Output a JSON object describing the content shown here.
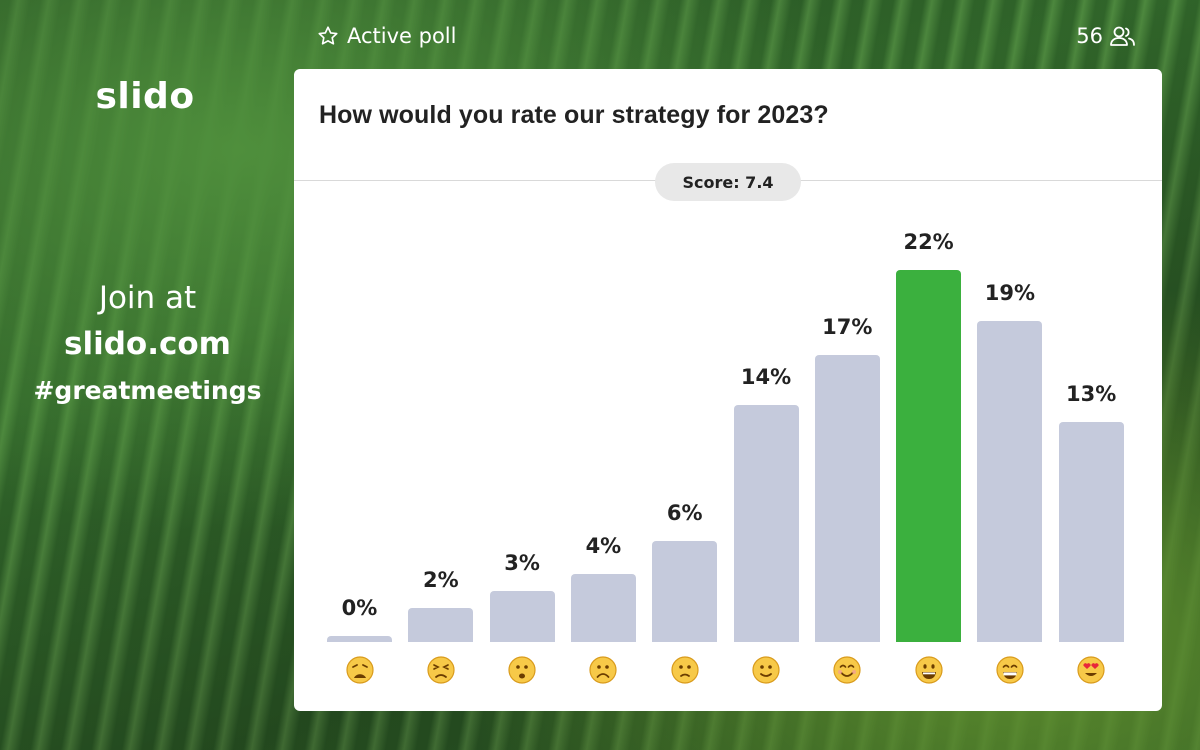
{
  "brand": {
    "logo": "slido"
  },
  "join": {
    "line1": "Join at",
    "line2": "slido.com",
    "line3": "#greatmeetings"
  },
  "topbar": {
    "status": "Active poll",
    "status_icon": "star-outline-icon",
    "participants": "56",
    "participants_icon": "people-icon"
  },
  "poll": {
    "question": "How would you rate our strategy for 2023?",
    "score": "Score: 7.4"
  },
  "chart_data": {
    "type": "bar",
    "categories": [
      "1",
      "2",
      "3",
      "4",
      "5",
      "6",
      "7",
      "8",
      "9",
      "10"
    ],
    "values": [
      0,
      2,
      3,
      4,
      6,
      14,
      17,
      22,
      19,
      13
    ],
    "labels": [
      "0%",
      "2%",
      "3%",
      "4%",
      "6%",
      "14%",
      "17%",
      "22%",
      "19%",
      "13%"
    ],
    "icons": [
      "weary-face",
      "persevering-face",
      "hushed-face",
      "frowning-face",
      "slightly-frowning-face",
      "slightly-smiling-face",
      "smiling-face",
      "grinning-face",
      "beaming-face",
      "heart-eyes-face"
    ],
    "highlight_index": 7,
    "colors": {
      "bar": "#c5cadc",
      "highlight": "#3bb03e"
    },
    "ylim": [
      0,
      22
    ]
  }
}
